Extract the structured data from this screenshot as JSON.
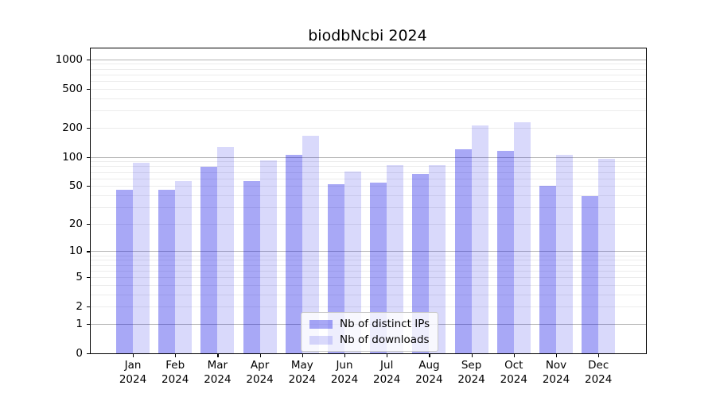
{
  "chart_data": {
    "type": "bar",
    "title": "biodbNcbi 2024",
    "months": [
      "Jan",
      "Feb",
      "Mar",
      "Apr",
      "May",
      "Jun",
      "Jul",
      "Aug",
      "Sep",
      "Oct",
      "Nov",
      "Dec"
    ],
    "year": "2024",
    "series": [
      {
        "name": "Nb of distinct IPs",
        "color": "rgba(0,0,230,0.34)",
        "values": [
          46,
          46,
          80,
          56,
          105,
          52,
          54,
          67,
          120,
          116,
          50,
          39
        ]
      },
      {
        "name": "Nb of downloads",
        "color": "rgba(0,0,230,0.15)",
        "values": [
          87,
          56,
          128,
          93,
          165,
          71,
          82,
          83,
          212,
          228,
          105,
          95
        ]
      }
    ],
    "yscale": "log1p",
    "yticks": [
      0,
      1,
      2,
      5,
      10,
      20,
      50,
      100,
      200,
      500,
      1000
    ],
    "ylim": [
      0,
      1294
    ],
    "grid": "horizontal",
    "grid_major_values": [
      1,
      10,
      100,
      1000
    ],
    "colors": {
      "major_grid": "#b4b4b4",
      "minor_grid": "#ececec",
      "axis": "#000000",
      "text": "#000000",
      "legend_border": "#c9c9c9"
    },
    "legend_position": "lower center"
  }
}
